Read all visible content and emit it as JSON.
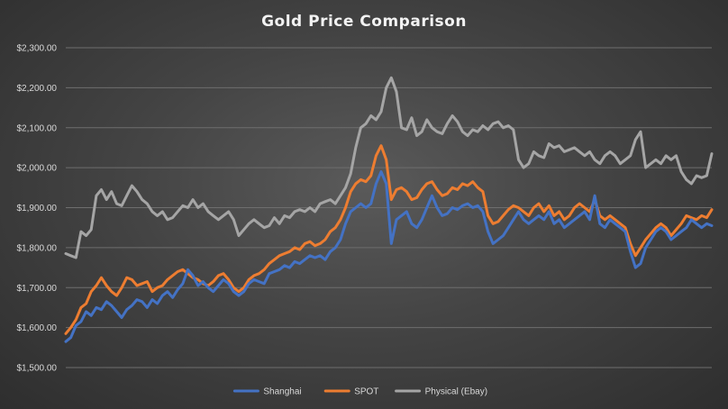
{
  "chart_data": {
    "type": "line",
    "title": "Gold Price Comparison",
    "xlabel": "",
    "ylabel": "",
    "ylim": [
      1500,
      2300
    ],
    "yticks": [
      1500,
      1600,
      1700,
      1800,
      1900,
      2000,
      2100,
      2200,
      2300
    ],
    "ytick_labels": [
      "$1,500.00",
      "$1,600.00",
      "$1,700.00",
      "$1,800.00",
      "$1,900.00",
      "$2,000.00",
      "$2,100.00",
      "$2,200.00",
      "$2,300.00"
    ],
    "grid": true,
    "legend_position": "bottom",
    "x_count": 128,
    "series": [
      {
        "name": "Shanghai",
        "color": "#4472C4",
        "values": [
          1565,
          1575,
          1605,
          1615,
          1640,
          1630,
          1650,
          1645,
          1665,
          1655,
          1640,
          1625,
          1645,
          1655,
          1670,
          1665,
          1650,
          1670,
          1660,
          1680,
          1690,
          1675,
          1695,
          1710,
          1745,
          1730,
          1705,
          1715,
          1700,
          1690,
          1705,
          1720,
          1710,
          1690,
          1680,
          1690,
          1710,
          1720,
          1715,
          1710,
          1735,
          1740,
          1745,
          1755,
          1750,
          1765,
          1760,
          1770,
          1780,
          1775,
          1780,
          1770,
          1790,
          1800,
          1820,
          1860,
          1890,
          1900,
          1910,
          1900,
          1910,
          1960,
          1990,
          1960,
          1810,
          1870,
          1880,
          1890,
          1860,
          1850,
          1870,
          1900,
          1930,
          1900,
          1880,
          1885,
          1900,
          1895,
          1905,
          1910,
          1900,
          1905,
          1890,
          1840,
          1810,
          1820,
          1830,
          1850,
          1870,
          1890,
          1870,
          1860,
          1870,
          1880,
          1870,
          1890,
          1860,
          1870,
          1850,
          1860,
          1870,
          1880,
          1890,
          1870,
          1930,
          1860,
          1850,
          1870,
          1860,
          1850,
          1840,
          1790,
          1750,
          1760,
          1800,
          1820,
          1840,
          1850,
          1840,
          1820,
          1830,
          1840,
          1850,
          1870,
          1860,
          1850,
          1860,
          1855
        ]
      },
      {
        "name": "SPOT",
        "color": "#ED7D31",
        "values": [
          1585,
          1600,
          1620,
          1650,
          1660,
          1690,
          1705,
          1725,
          1705,
          1690,
          1680,
          1700,
          1725,
          1720,
          1705,
          1710,
          1715,
          1690,
          1700,
          1705,
          1720,
          1730,
          1740,
          1745,
          1735,
          1725,
          1720,
          1710,
          1705,
          1715,
          1730,
          1735,
          1720,
          1700,
          1690,
          1700,
          1720,
          1730,
          1735,
          1745,
          1760,
          1770,
          1780,
          1785,
          1790,
          1800,
          1795,
          1810,
          1815,
          1805,
          1810,
          1820,
          1840,
          1850,
          1870,
          1900,
          1940,
          1960,
          1970,
          1965,
          1980,
          2030,
          2055,
          2020,
          1920,
          1945,
          1950,
          1940,
          1920,
          1925,
          1945,
          1960,
          1965,
          1945,
          1930,
          1935,
          1950,
          1945,
          1960,
          1955,
          1965,
          1950,
          1940,
          1880,
          1860,
          1865,
          1880,
          1895,
          1905,
          1900,
          1890,
          1880,
          1900,
          1910,
          1890,
          1905,
          1880,
          1890,
          1870,
          1880,
          1900,
          1910,
          1900,
          1890,
          1920,
          1880,
          1870,
          1880,
          1870,
          1860,
          1850,
          1810,
          1780,
          1800,
          1820,
          1835,
          1850,
          1860,
          1850,
          1830,
          1845,
          1860,
          1880,
          1875,
          1870,
          1880,
          1875,
          1895
        ]
      },
      {
        "name": "Physical (Ebay)",
        "color": "#A5A5A5",
        "values": [
          1785,
          1780,
          1775,
          1840,
          1830,
          1845,
          1930,
          1945,
          1920,
          1940,
          1910,
          1905,
          1930,
          1955,
          1940,
          1920,
          1910,
          1890,
          1880,
          1890,
          1870,
          1875,
          1890,
          1905,
          1900,
          1920,
          1900,
          1910,
          1890,
          1880,
          1870,
          1880,
          1890,
          1870,
          1830,
          1845,
          1860,
          1870,
          1860,
          1850,
          1855,
          1875,
          1860,
          1880,
          1875,
          1890,
          1895,
          1890,
          1900,
          1890,
          1910,
          1915,
          1920,
          1910,
          1930,
          1950,
          1985,
          2050,
          2100,
          2110,
          2130,
          2120,
          2140,
          2200,
          2225,
          2190,
          2100,
          2095,
          2125,
          2080,
          2090,
          2120,
          2100,
          2090,
          2085,
          2110,
          2130,
          2115,
          2090,
          2080,
          2095,
          2090,
          2105,
          2095,
          2110,
          2115,
          2100,
          2105,
          2095,
          2020,
          2000,
          2010,
          2040,
          2030,
          2025,
          2060,
          2050,
          2055,
          2040,
          2045,
          2050,
          2040,
          2030,
          2040,
          2020,
          2010,
          2030,
          2040,
          2030,
          2010,
          2020,
          2030,
          2070,
          2090,
          2000,
          2010,
          2020,
          2010,
          2030,
          2020,
          2030,
          1990,
          1970,
          1960,
          1980,
          1975,
          1980,
          2035
        ]
      }
    ]
  }
}
